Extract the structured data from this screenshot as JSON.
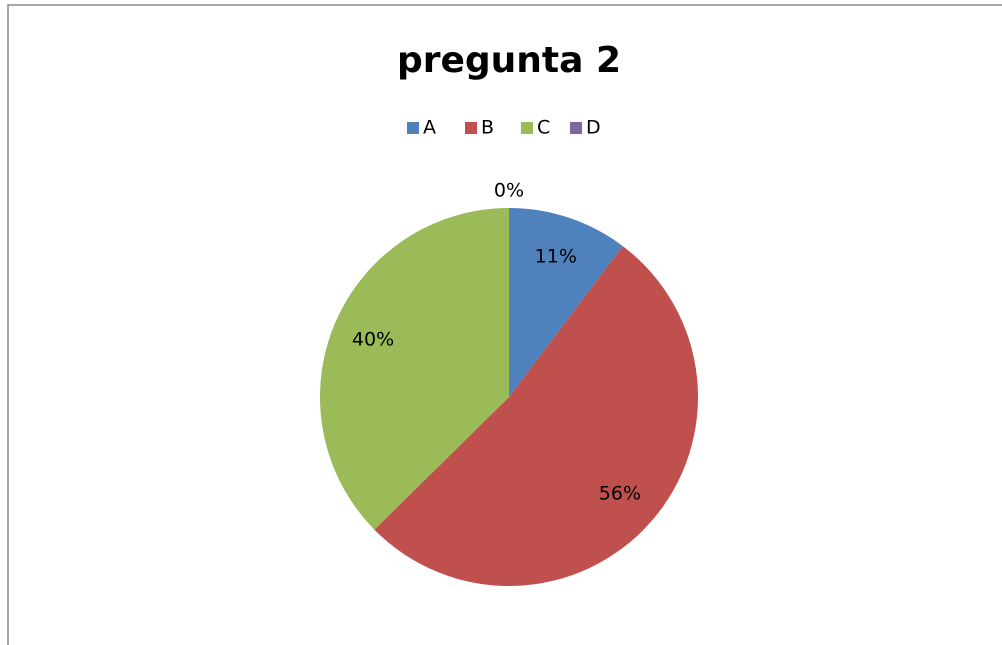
{
  "chart_data": {
    "type": "pie",
    "title": "pregunta 2",
    "categories": [
      "A",
      "B",
      "C",
      "D"
    ],
    "values": [
      11,
      56,
      40,
      0
    ],
    "value_labels": [
      "11%",
      "56%",
      "40%",
      "0%"
    ],
    "colors": [
      "#4f81bd",
      "#c0504d",
      "#9bbb59",
      "#8064a2"
    ],
    "legend": "top"
  }
}
